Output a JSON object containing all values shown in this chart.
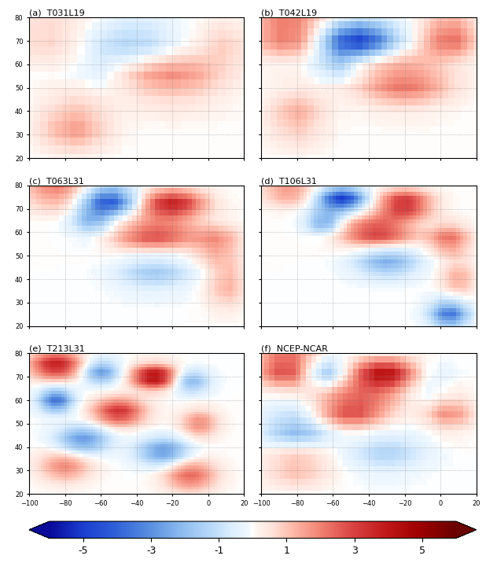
{
  "titles": [
    "(a)  T031L19",
    "(b)  T042L19",
    "(c)  T063L31",
    "(d)  T106L31",
    "(e)  T213L31",
    "(f)  NCEP-NCAR"
  ],
  "lon_range": [
    -100,
    20
  ],
  "lat_range": [
    20,
    80
  ],
  "clim": [
    -6,
    6
  ],
  "colorbar_ticks": [
    -5,
    -3,
    -1,
    1,
    3,
    5
  ],
  "colorbar_label": "",
  "dpi": 100,
  "figsize": [
    6.18,
    7.44
  ],
  "cmap_colors": [
    [
      0.0,
      "#0a0a8a"
    ],
    [
      0.1,
      "#1a4dcf"
    ],
    [
      0.2,
      "#4878d8"
    ],
    [
      0.3,
      "#7aaee8"
    ],
    [
      0.4,
      "#b0d0f5"
    ],
    [
      0.42,
      "#d0e5fb"
    ],
    [
      0.48,
      "#edf4ff"
    ],
    [
      0.5,
      "#ffffff"
    ],
    [
      0.52,
      "#fff0ee"
    ],
    [
      0.58,
      "#fad0c5"
    ],
    [
      0.6,
      "#f5b0a0"
    ],
    [
      0.7,
      "#e87060"
    ],
    [
      0.8,
      "#d83030"
    ],
    [
      0.9,
      "#b81010"
    ],
    [
      1.0,
      "#8a0000"
    ]
  ],
  "subplot_rows": 3,
  "subplot_cols": 2,
  "lon_ticks": [
    -100,
    -80,
    -60,
    -40,
    -20,
    0,
    20
  ],
  "lat_ticks": [
    20,
    30,
    40,
    50,
    60,
    70,
    80
  ],
  "grid_lons": [
    -80,
    -60,
    -40,
    -20,
    0
  ],
  "grid_lats": [
    30,
    40,
    50,
    60,
    70
  ]
}
